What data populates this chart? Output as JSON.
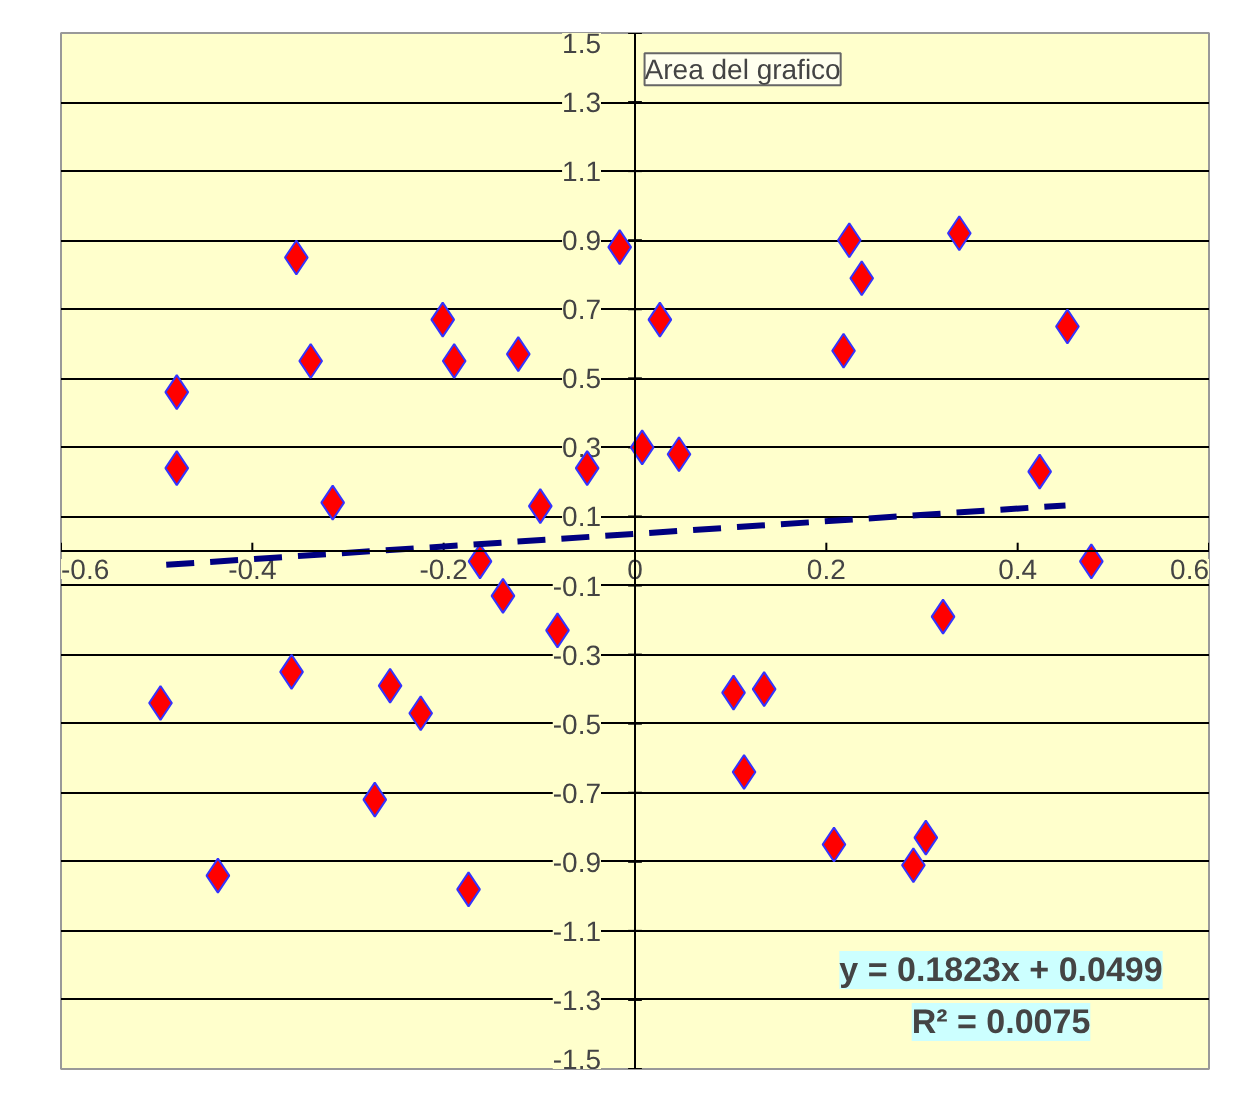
{
  "chart_data": {
    "type": "scatter",
    "marker": "diamond",
    "grid": "y",
    "xlim": [
      -0.6,
      0.6
    ],
    "ylim": [
      -1.5,
      1.5
    ],
    "xticks": [
      -0.6,
      -0.4,
      -0.2,
      0,
      0.2,
      0.4,
      0.6
    ],
    "yticks": [
      -1.5,
      -1.3,
      -1.1,
      -0.9,
      -0.7,
      -0.5,
      -0.3,
      -0.1,
      0.1,
      0.3,
      0.5,
      0.7,
      0.9,
      1.1,
      1.3,
      1.5
    ],
    "annotations": [
      "Area del grafico",
      "y = 0.1823x + 0.0499",
      "R² = 0.0075"
    ],
    "series": [
      {
        "color": "#ff0000",
        "x": [
          -0.479,
          -0.479,
          -0.354,
          -0.339,
          -0.316,
          -0.201,
          -0.189,
          -0.122,
          -0.099,
          -0.05,
          -0.016,
          -0.162,
          0.0075,
          0.026,
          0.046,
          0.224,
          0.237,
          0.218,
          0.339,
          0.452,
          0.423,
          0.477,
          -0.138,
          -0.081,
          -0.496,
          -0.359,
          -0.256,
          -0.224,
          -0.272,
          -0.436,
          -0.174,
          0.322,
          0.103,
          0.135,
          0.114,
          0.208,
          0.304,
          0.291
        ],
        "values": [
          0.46,
          0.24,
          0.85,
          0.55,
          0.14,
          0.67,
          0.55,
          0.57,
          0.13,
          0.24,
          0.88,
          -0.03,
          0.3,
          0.67,
          0.28,
          0.9,
          0.79,
          0.58,
          0.92,
          0.65,
          0.23,
          -0.03,
          -0.13,
          -0.23,
          -0.44,
          -0.35,
          -0.39,
          -0.47,
          -0.72,
          -0.94,
          -0.98,
          -0.19,
          -0.41,
          -0.4,
          -0.64,
          -0.85,
          -0.83,
          -0.91
        ]
      },
      {
        "type": "line",
        "marker": "none",
        "line_style": "dashed",
        "color": "#000080",
        "x": [
          -0.49,
          0.45
        ],
        "values": [
          -0.04,
          0.132
        ]
      }
    ]
  }
}
